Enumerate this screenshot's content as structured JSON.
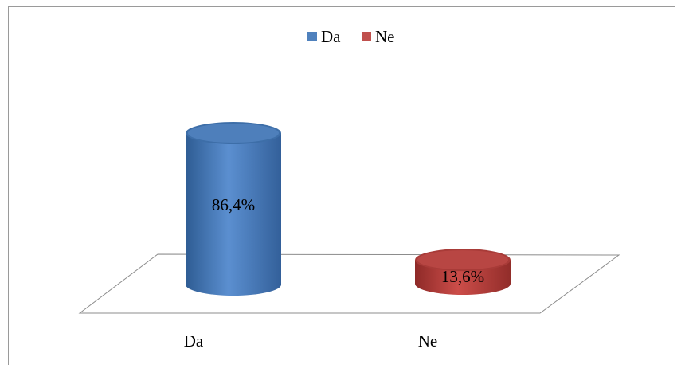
{
  "chart_data": {
    "type": "bar",
    "title": "",
    "xlabel": "",
    "ylabel": "",
    "categories": [
      "Da",
      "Ne"
    ],
    "values": [
      86.4,
      13.6
    ],
    "value_labels": [
      "86,4%",
      "13,6%"
    ],
    "ylim": [
      0,
      100
    ],
    "grid": false,
    "legend_position": "top-center",
    "legend": [
      {
        "label": "Da",
        "color": "#4f81bd"
      },
      {
        "label": "Ne",
        "color": "#c0504d"
      }
    ],
    "colors": [
      "#4f81bd",
      "#c0504d"
    ]
  }
}
